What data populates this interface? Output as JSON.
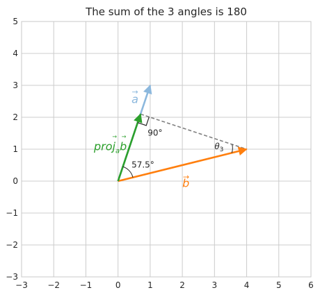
{
  "chart_data": {
    "type": "line",
    "title": "The sum of the 3 angles is 180",
    "xlim": [
      -3,
      6
    ],
    "ylim": [
      -3,
      5
    ],
    "xticks": [
      -3,
      -2,
      -1,
      0,
      1,
      2,
      3,
      4,
      5,
      6
    ],
    "yticks": [
      -3,
      -2,
      -1,
      0,
      1,
      2,
      3,
      4,
      5
    ],
    "xtick_labels": [
      "−3",
      "−2",
      "−1",
      "0",
      "1",
      "2",
      "3",
      "4",
      "5",
      "6"
    ],
    "ytick_labels": [
      "−3",
      "−2",
      "−1",
      "0",
      "1",
      "2",
      "3",
      "4",
      "5"
    ],
    "grid": true,
    "vectors": [
      {
        "label": "a",
        "from": [
          0,
          0
        ],
        "to": [
          1,
          3
        ],
        "color": "#8cb8dd"
      },
      {
        "label": "b",
        "from": [
          0,
          0
        ],
        "to": [
          4,
          1
        ],
        "color": "#ff7f0e"
      },
      {
        "label": "proj_a b",
        "from": [
          0,
          0
        ],
        "to": [
          0.7,
          2.1
        ],
        "color": "#2ca02c"
      }
    ],
    "dashed_line": {
      "from": [
        0.7,
        2.1
      ],
      "to": [
        4,
        1
      ],
      "color": "#808080"
    },
    "vector_labels": {
      "a": "a",
      "b": "b",
      "proj_main": "proj",
      "proj_sub": "a",
      "proj_b": "b"
    },
    "angle_labels": {
      "origin": "57.5°",
      "right": "90°",
      "theta_symbol": "θ",
      "theta_sub": "3"
    }
  }
}
